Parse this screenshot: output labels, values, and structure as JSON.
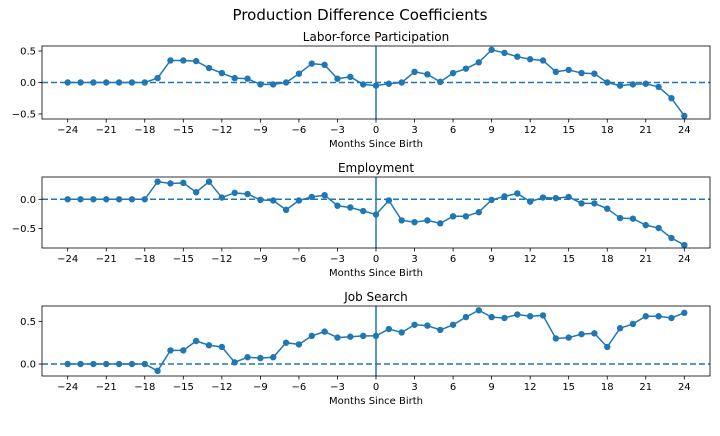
{
  "figure": {
    "suptitle": "Production Difference Coefficients"
  },
  "colors": {
    "series": "#1f77b4",
    "axis": "#000000"
  },
  "chart_data": [
    {
      "type": "line",
      "title": "Labor-force Participation",
      "xlabel": "Months Since Birth",
      "ylabel": "",
      "xlim": [
        -26,
        26
      ],
      "ylim": [
        -0.58,
        0.58
      ],
      "xticks": [
        -24,
        -21,
        -18,
        -15,
        -12,
        -9,
        -6,
        -3,
        0,
        3,
        6,
        9,
        12,
        15,
        18,
        21,
        24
      ],
      "yticks": [
        -0.5,
        0.0,
        0.5
      ],
      "ytick_labels": [
        "−0.5",
        "0.0",
        "0.5"
      ],
      "hline": 0,
      "vline": 0,
      "x": [
        -24,
        -23,
        -22,
        -21,
        -20,
        -19,
        -18,
        -17,
        -16,
        -15,
        -14,
        -13,
        -12,
        -11,
        -10,
        -9,
        -8,
        -7,
        -6,
        -5,
        -4,
        -3,
        -2,
        -1,
        0,
        1,
        2,
        3,
        4,
        5,
        6,
        7,
        8,
        9,
        10,
        11,
        12,
        13,
        14,
        15,
        16,
        17,
        18,
        19,
        20,
        21,
        22,
        23,
        24
      ],
      "y": [
        0.0,
        0.0,
        0.0,
        0.0,
        0.0,
        0.0,
        0.0,
        0.07,
        0.35,
        0.35,
        0.34,
        0.23,
        0.15,
        0.07,
        0.06,
        -0.03,
        -0.03,
        0.0,
        0.14,
        0.3,
        0.28,
        0.06,
        0.09,
        -0.03,
        -0.05,
        -0.02,
        0.0,
        0.17,
        0.13,
        0.01,
        0.15,
        0.22,
        0.32,
        0.52,
        0.47,
        0.41,
        0.37,
        0.35,
        0.17,
        0.2,
        0.15,
        0.14,
        0.0,
        -0.05,
        -0.03,
        -0.02,
        -0.07,
        -0.25,
        -0.53
      ]
    },
    {
      "type": "line",
      "title": "Employment",
      "xlabel": "Months Since Birth",
      "ylabel": "",
      "xlim": [
        -26,
        26
      ],
      "ylim": [
        -0.83,
        0.38
      ],
      "xticks": [
        -24,
        -21,
        -18,
        -15,
        -12,
        -9,
        -6,
        -3,
        0,
        3,
        6,
        9,
        12,
        15,
        18,
        21,
        24
      ],
      "yticks": [
        -0.5,
        0.0
      ],
      "ytick_labels": [
        "−0.5",
        "0.0"
      ],
      "hline": 0,
      "vline": 0,
      "x": [
        -24,
        -23,
        -22,
        -21,
        -20,
        -19,
        -18,
        -17,
        -16,
        -15,
        -14,
        -13,
        -12,
        -11,
        -10,
        -9,
        -8,
        -7,
        -6,
        -5,
        -4,
        -3,
        -2,
        -1,
        0,
        1,
        2,
        3,
        4,
        5,
        6,
        7,
        8,
        9,
        10,
        11,
        12,
        13,
        14,
        15,
        16,
        17,
        18,
        19,
        20,
        21,
        22,
        23,
        24
      ],
      "y": [
        0.0,
        0.0,
        0.0,
        0.0,
        0.0,
        0.0,
        0.0,
        0.3,
        0.27,
        0.28,
        0.12,
        0.3,
        0.03,
        0.11,
        0.09,
        -0.01,
        -0.02,
        -0.18,
        -0.02,
        0.04,
        0.07,
        -0.11,
        -0.14,
        -0.2,
        -0.26,
        -0.02,
        -0.36,
        -0.39,
        -0.36,
        -0.41,
        -0.29,
        -0.29,
        -0.22,
        -0.01,
        0.05,
        0.1,
        -0.04,
        0.03,
        0.02,
        0.04,
        -0.07,
        -0.07,
        -0.16,
        -0.32,
        -0.33,
        -0.44,
        -0.49,
        -0.66,
        -0.78
      ]
    },
    {
      "type": "line",
      "title": "Job Search",
      "xlabel": "Months Since Birth",
      "ylabel": "",
      "xlim": [
        -26,
        26
      ],
      "ylim": [
        -0.14,
        0.68
      ],
      "xticks": [
        -24,
        -21,
        -18,
        -15,
        -12,
        -9,
        -6,
        -3,
        0,
        3,
        6,
        9,
        12,
        15,
        18,
        21,
        24
      ],
      "yticks": [
        0.0,
        0.5
      ],
      "ytick_labels": [
        "0.0",
        "0.5"
      ],
      "hline": 0,
      "vline": 0,
      "x": [
        -24,
        -23,
        -22,
        -21,
        -20,
        -19,
        -18,
        -17,
        -16,
        -15,
        -14,
        -13,
        -12,
        -11,
        -10,
        -9,
        -8,
        -7,
        -6,
        -5,
        -4,
        -3,
        -2,
        -1,
        0,
        1,
        2,
        3,
        4,
        5,
        6,
        7,
        8,
        9,
        10,
        11,
        12,
        13,
        14,
        15,
        16,
        17,
        18,
        19,
        20,
        21,
        22,
        23,
        24
      ],
      "y": [
        0.0,
        0.0,
        0.0,
        0.0,
        0.0,
        0.0,
        0.0,
        -0.08,
        0.16,
        0.16,
        0.27,
        0.22,
        0.2,
        0.02,
        0.08,
        0.07,
        0.08,
        0.25,
        0.23,
        0.33,
        0.38,
        0.31,
        0.32,
        0.33,
        0.33,
        0.41,
        0.37,
        0.46,
        0.45,
        0.4,
        0.46,
        0.55,
        0.63,
        0.55,
        0.54,
        0.58,
        0.56,
        0.57,
        0.3,
        0.31,
        0.35,
        0.36,
        0.2,
        0.42,
        0.47,
        0.56,
        0.56,
        0.54,
        0.6
      ]
    }
  ]
}
